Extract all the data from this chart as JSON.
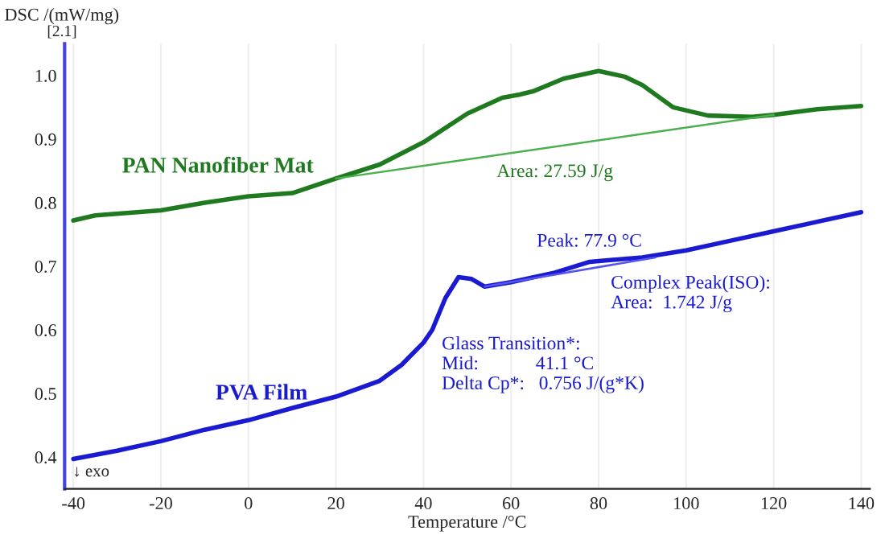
{
  "chart_data": {
    "type": "line",
    "xlabel": "Temperature /°C",
    "ylabel": "DSC /(mW/mg)",
    "xlim": [
      -42,
      142
    ],
    "ylim": [
      0.35,
      1.05
    ],
    "xticks": [
      -40,
      -20,
      0,
      20,
      40,
      60,
      80,
      100,
      120,
      140
    ],
    "yticks": [
      0.4,
      0.5,
      0.6,
      0.7,
      0.8,
      0.9,
      {
        "value": 1.0,
        "label": "1.0"
      }
    ],
    "grid": "x",
    "legend": false,
    "marker": "none",
    "line_style": "solid",
    "series": [
      {
        "name": "PAN Nanofiber Mat",
        "color": "#1f7a1f",
        "x": [
          -40,
          -35,
          -20,
          -10,
          0,
          10,
          20,
          30,
          40,
          50,
          58,
          62,
          65,
          72,
          80,
          86,
          90,
          97,
          105,
          115,
          120,
          130,
          140
        ],
        "values": [
          0.772,
          0.78,
          0.788,
          0.8,
          0.81,
          0.815,
          0.838,
          0.86,
          0.895,
          0.94,
          0.965,
          0.97,
          0.975,
          0.995,
          1.007,
          0.998,
          0.985,
          0.95,
          0.937,
          0.935,
          0.938,
          0.947,
          0.952
        ]
      },
      {
        "color": "#4caf50",
        "x": [
          20,
          120
        ],
        "values": [
          0.838,
          0.938
        ]
      },
      {
        "name": "PVA Film",
        "color": "#1a1ad0",
        "x": [
          -40,
          -30,
          -20,
          -10,
          0,
          10,
          20,
          30,
          35,
          40,
          42,
          45,
          48,
          51,
          54,
          60,
          70,
          78,
          90,
          100,
          110,
          120,
          130,
          140
        ],
        "values": [
          0.397,
          0.41,
          0.425,
          0.443,
          0.458,
          0.477,
          0.495,
          0.52,
          0.545,
          0.58,
          0.6,
          0.65,
          0.683,
          0.68,
          0.668,
          0.675,
          0.69,
          0.707,
          0.714,
          0.725,
          0.74,
          0.755,
          0.77,
          0.785
        ]
      },
      {
        "color": "#5555ee",
        "x": [
          54,
          93
        ],
        "values": [
          0.668,
          0.714
        ]
      }
    ],
    "annotations": [
      {
        "text": "Area: 27.59 J/g",
        "x": 70,
        "y": 0.875
      },
      {
        "text": "Peak: 77.9 °C",
        "x": 77.9,
        "y": 0.707
      },
      {
        "text": "Complex Peak(ISO):\nArea:  1.742 J/g",
        "x": 93,
        "y": 0.714
      },
      {
        "text": "Glass Transition*:\nMid:            41.1 °C\nDelta Cp*:   0.756 J/(g*K)",
        "x": 41.1,
        "y": 0.59
      },
      "[2.1]",
      "↓ exo"
    ]
  }
}
